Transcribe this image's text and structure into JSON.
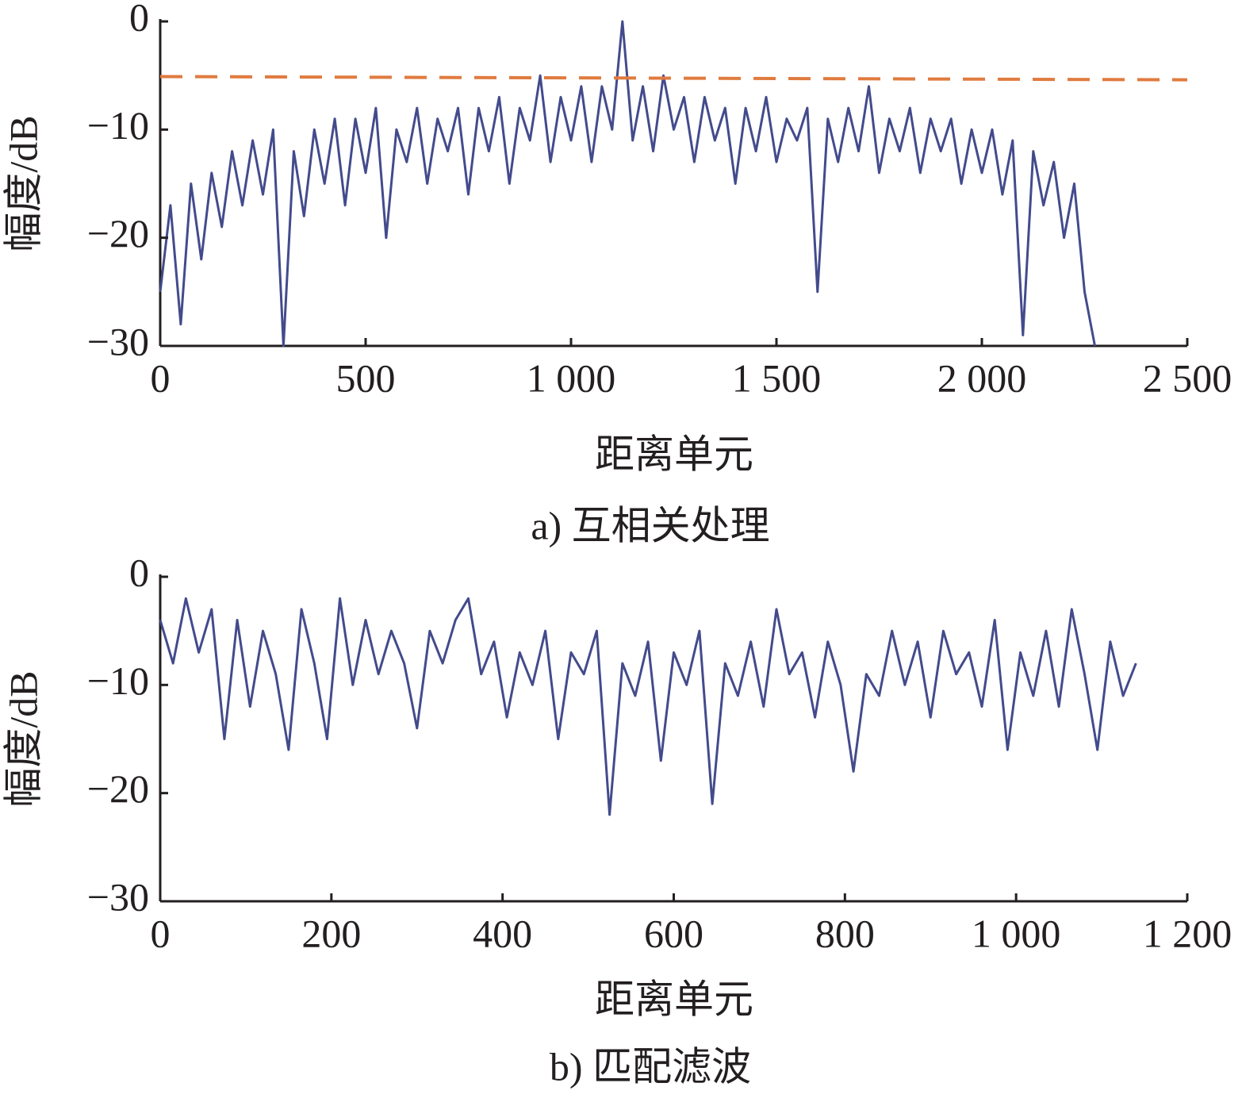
{
  "chart_data": [
    {
      "type": "line",
      "ylabel": "幅度/dB",
      "xlabel": "距离单元",
      "caption": "a) 互相关处理",
      "xlim": [
        0,
        2500
      ],
      "ylim": [
        -30,
        0
      ],
      "xticks": [
        0,
        500,
        {
          "value": 1000,
          "label": "1 000"
        },
        {
          "value": 1500,
          "label": "1 500"
        },
        {
          "value": 2000,
          "label": "2 000"
        },
        {
          "value": 2500,
          "label": "2 500"
        }
      ],
      "yticks": [
        {
          "value": -30,
          "label": "−30"
        },
        {
          "value": -20,
          "label": "−20"
        },
        {
          "value": -10,
          "label": "−10"
        },
        0
      ],
      "series": [
        {
          "color": "#434b8c",
          "x": [
            0,
            25,
            50,
            75,
            100,
            125,
            150,
            175,
            200,
            225,
            250,
            275,
            300,
            325,
            350,
            375,
            400,
            425,
            450,
            475,
            500,
            525,
            550,
            575,
            600,
            625,
            650,
            675,
            700,
            725,
            750,
            775,
            800,
            825,
            850,
            875,
            900,
            925,
            950,
            975,
            1000,
            1025,
            1050,
            1075,
            1100,
            1125,
            1150,
            1175,
            1200,
            1225,
            1250,
            1275,
            1300,
            1325,
            1350,
            1375,
            1400,
            1425,
            1450,
            1475,
            1500,
            1525,
            1550,
            1575,
            1600,
            1625,
            1650,
            1675,
            1700,
            1725,
            1750,
            1775,
            1800,
            1825,
            1850,
            1875,
            1900,
            1925,
            1950,
            1975,
            2000,
            2025,
            2050,
            2075,
            2100,
            2125,
            2150,
            2175,
            2200,
            2225,
            2250,
            2275
          ],
          "values": [
            -25,
            -17,
            -28,
            -15,
            -22,
            -14,
            -19,
            -12,
            -17,
            -11,
            -16,
            -10,
            -30,
            -12,
            -18,
            -10,
            -15,
            -9,
            -17,
            -9,
            -14,
            -8,
            -20,
            -10,
            -13,
            -8,
            -15,
            -9,
            -12,
            -8,
            -16,
            -8,
            -12,
            -7,
            -15,
            -8,
            -11,
            -5,
            -13,
            -7,
            -11,
            -6,
            -13,
            -6,
            -10,
            0,
            -11,
            -6,
            -12,
            -5,
            -10,
            -7,
            -13,
            -7,
            -11,
            -8,
            -15,
            -8,
            -12,
            -7,
            -13,
            -9,
            -11,
            -8,
            -25,
            -9,
            -13,
            -8,
            -12,
            -6,
            -14,
            -9,
            -12,
            -8,
            -14,
            -9,
            -12,
            -9,
            -15,
            -10,
            -14,
            -10,
            -16,
            -11,
            -29,
            -12,
            -17,
            -13,
            -20,
            -15,
            -25,
            -30
          ]
        },
        {
          "color": "#e07b3f",
          "dashed": true,
          "x": [
            0,
            2500
          ],
          "values": [
            -5.1,
            -5.4
          ]
        }
      ]
    },
    {
      "type": "line",
      "ylabel": "幅度/dB",
      "xlabel": "距离单元",
      "caption": "b) 匹配滤波",
      "xlim": [
        0,
        1200
      ],
      "ylim": [
        -30,
        0
      ],
      "xticks": [
        0,
        200,
        400,
        600,
        800,
        {
          "value": 1000,
          "label": "1 000"
        },
        {
          "value": 1200,
          "label": "1 200"
        }
      ],
      "yticks": [
        {
          "value": -30,
          "label": "−30"
        },
        {
          "value": -20,
          "label": "−20"
        },
        {
          "value": -10,
          "label": "−10"
        },
        0
      ],
      "series": [
        {
          "color": "#434b8c",
          "x": [
            0,
            15,
            30,
            45,
            60,
            75,
            90,
            105,
            120,
            135,
            150,
            165,
            180,
            195,
            210,
            225,
            240,
            255,
            270,
            285,
            300,
            315,
            330,
            345,
            360,
            375,
            390,
            405,
            420,
            435,
            450,
            465,
            480,
            495,
            510,
            525,
            540,
            555,
            570,
            585,
            600,
            615,
            630,
            645,
            660,
            675,
            690,
            705,
            720,
            735,
            750,
            765,
            780,
            795,
            810,
            825,
            840,
            855,
            870,
            885,
            900,
            915,
            930,
            945,
            960,
            975,
            990,
            1005,
            1020,
            1035,
            1050,
            1065,
            1080,
            1095,
            1110,
            1125,
            1140
          ],
          "values": [
            -4,
            -8,
            -2,
            -7,
            -3,
            -15,
            -4,
            -12,
            -5,
            -9,
            -16,
            -3,
            -8,
            -15,
            -2,
            -10,
            -4,
            -9,
            -5,
            -8,
            -14,
            -5,
            -8,
            -4,
            -2,
            -9,
            -6,
            -13,
            -7,
            -10,
            -5,
            -15,
            -7,
            -9,
            -5,
            -22,
            -8,
            -11,
            -6,
            -17,
            -7,
            -10,
            -5,
            -21,
            -8,
            -11,
            -6,
            -12,
            -3,
            -9,
            -7,
            -13,
            -6,
            -10,
            -18,
            -9,
            -11,
            -5,
            -10,
            -6,
            -13,
            -5,
            -9,
            -7,
            -12,
            -4,
            -16,
            -7,
            -11,
            -5,
            -12,
            -3,
            -9,
            -16,
            -6,
            -11,
            -8
          ]
        }
      ]
    }
  ]
}
